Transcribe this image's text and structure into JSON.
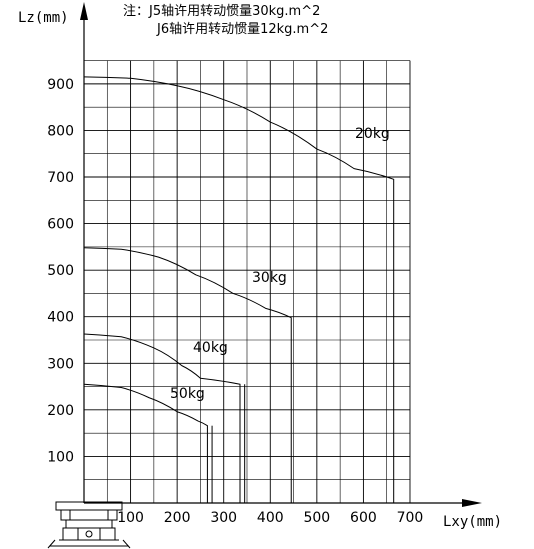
{
  "chart_data": {
    "type": "line",
    "title": "",
    "note_lines": [
      "注：J5轴许用转动惯量30kg.m^2",
      "J6轴许用转动惯量12kg.m^2"
    ],
    "xlabel": "Lxy(mm)",
    "ylabel": "Lz(mm)",
    "xlim": [
      0,
      700
    ],
    "ylim": [
      0,
      950
    ],
    "x_ticks": [
      100,
      200,
      300,
      400,
      500,
      600,
      700
    ],
    "y_ticks": [
      100,
      200,
      300,
      400,
      500,
      600,
      700,
      800,
      900
    ],
    "grid": true,
    "series": [
      {
        "name": "20kg",
        "points": [
          [
            0,
            915
          ],
          [
            100,
            912
          ],
          [
            200,
            896
          ],
          [
            300,
            866
          ],
          [
            400,
            818
          ],
          [
            500,
            760
          ],
          [
            580,
            718
          ],
          [
            665,
            695
          ],
          [
            665,
            0
          ]
        ]
      },
      {
        "name": "30kg",
        "points": [
          [
            0,
            548
          ],
          [
            80,
            545
          ],
          [
            160,
            528
          ],
          [
            240,
            490
          ],
          [
            320,
            450
          ],
          [
            390,
            418
          ],
          [
            445,
            398
          ],
          [
            445,
            0
          ]
        ]
      },
      {
        "name": "40kg",
        "points": [
          [
            0,
            363
          ],
          [
            80,
            357
          ],
          [
            150,
            333
          ],
          [
            210,
            295
          ],
          [
            250,
            268
          ],
          [
            335,
            255
          ],
          [
            335,
            0
          ]
        ]
      },
      {
        "name": "50kg",
        "points": [
          [
            0,
            255
          ],
          [
            80,
            248
          ],
          [
            140,
            226
          ],
          [
            200,
            196
          ],
          [
            245,
            176
          ],
          [
            265,
            166
          ],
          [
            265,
            0
          ]
        ]
      }
    ],
    "extra_verticals": [
      {
        "x": 275,
        "y_top": 166
      },
      {
        "x": 345,
        "y_top": 255
      }
    ],
    "colors": {
      "axis": "#000000",
      "grid": "#000000",
      "curve": "#000000",
      "background": "#ffffff"
    }
  }
}
